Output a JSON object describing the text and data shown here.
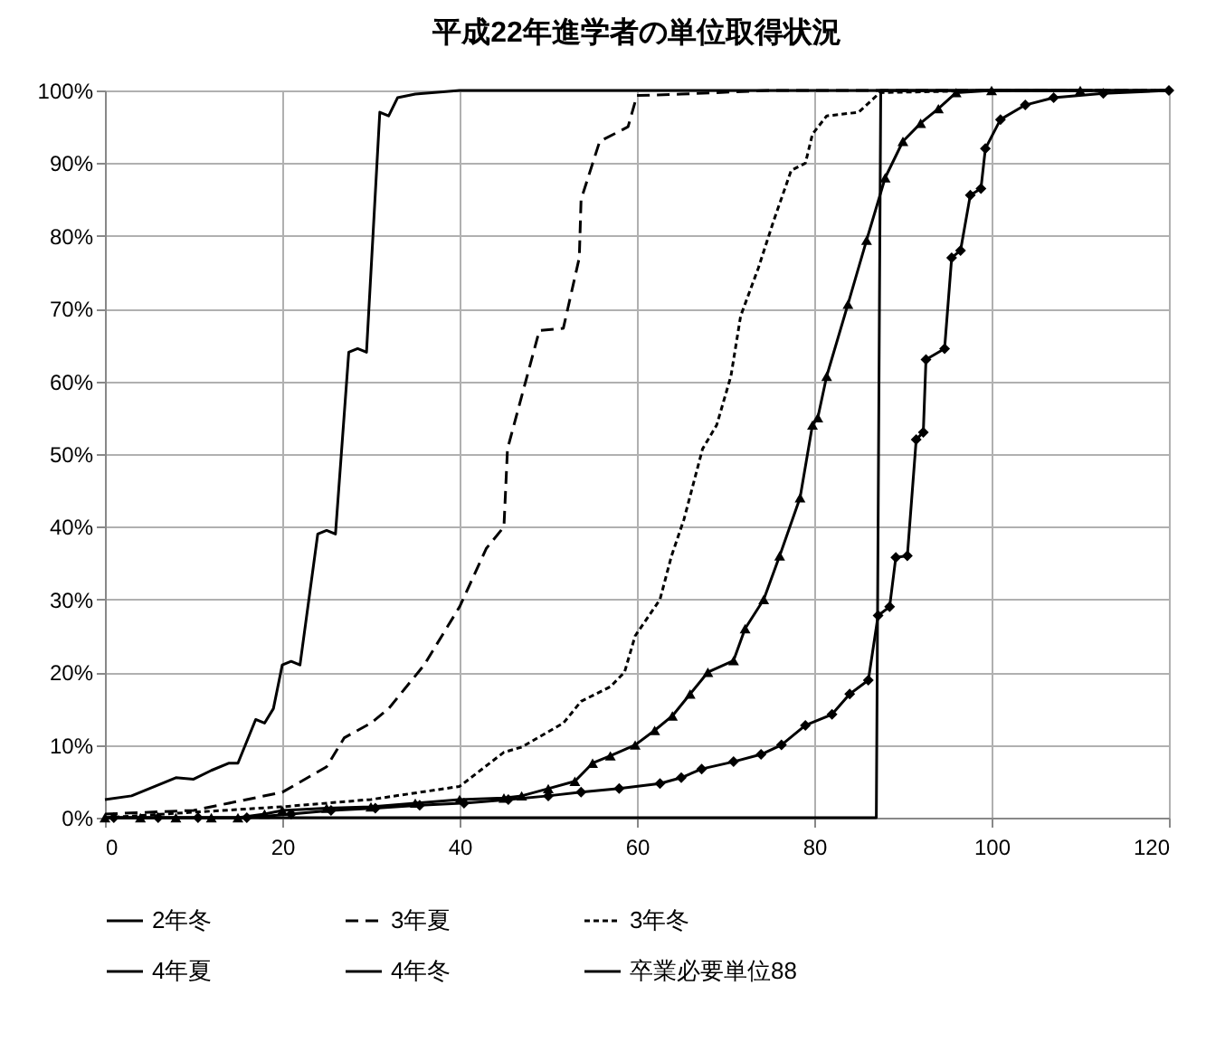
{
  "chart_data": {
    "type": "line",
    "title": "平成22年進学者の単位取得状況",
    "xlim": [
      0,
      120
    ],
    "xticks": [
      0,
      20,
      40,
      60,
      80,
      100,
      120
    ],
    "ylim": [
      0,
      100
    ],
    "yticks": [
      {
        "value": 0,
        "label": "0%"
      },
      {
        "value": 10,
        "label": "10%"
      },
      {
        "value": 20,
        "label": "20%"
      },
      {
        "value": 30,
        "label": "30%"
      },
      {
        "value": 40,
        "label": "40%"
      },
      {
        "value": 50,
        "label": "50%"
      },
      {
        "value": 60,
        "label": "60%"
      },
      {
        "value": 70,
        "label": "70%"
      },
      {
        "value": 80,
        "label": "80%"
      },
      {
        "value": 90,
        "label": "90%"
      },
      {
        "value": 100,
        "label": "100%"
      }
    ],
    "grid": true,
    "legend": "bottom",
    "series": [
      {
        "name": "2年冬",
        "color": "#000000",
        "line_style": "solid",
        "marker": "none",
        "x": [
          0,
          3,
          5,
          8,
          10,
          12,
          14,
          15,
          17,
          18,
          19,
          20,
          21,
          22,
          24,
          25,
          26,
          27.5,
          28.5,
          29.5,
          31,
          32,
          33,
          35,
          40,
          120
        ],
        "values": [
          2.5,
          3,
          4,
          5.5,
          5.3,
          6.5,
          7.5,
          7.5,
          13.5,
          13,
          15,
          21,
          21.5,
          21,
          39,
          39.5,
          39,
          64,
          64.5,
          64,
          97,
          96.5,
          99,
          99.5,
          100,
          100
        ]
      },
      {
        "name": "3年夏",
        "color": "#000000",
        "line_style": "dashed",
        "marker": "none",
        "x": [
          0,
          10,
          20,
          25,
          27,
          30,
          32,
          36,
          40,
          43,
          45,
          45.4,
          49,
          51.7,
          53.5,
          53.7,
          55.8,
          59,
          60,
          65,
          75,
          120
        ],
        "values": [
          0.5,
          1,
          3.5,
          7,
          11,
          13,
          15,
          21,
          29,
          37,
          40,
          50.7,
          67,
          67.3,
          77,
          85,
          93,
          95,
          99.3,
          99.5,
          100,
          100
        ]
      },
      {
        "name": "3年冬",
        "color": "#000000",
        "line_style": "dotted",
        "marker": "none",
        "x": [
          0,
          20,
          30,
          40,
          45,
          47,
          51.7,
          53.7,
          57,
          58.6,
          59.8,
          62.6,
          63.9,
          65.3,
          67.4,
          69,
          70.6,
          71.7,
          73.7,
          75.4,
          77.4,
          79,
          79.8,
          81.4,
          85,
          87.4,
          100,
          120
        ],
        "values": [
          0,
          1.5,
          2.5,
          4.3,
          9,
          9.7,
          13,
          16,
          18,
          20,
          25,
          30,
          36,
          41,
          50.7,
          54,
          60.7,
          69,
          75.6,
          82,
          89,
          90,
          94,
          96.5,
          97,
          99.7,
          100,
          100
        ]
      },
      {
        "name": "4年夏",
        "color": "#000000",
        "line_style": "solid",
        "marker": "triangle",
        "x": [
          0,
          4,
          8,
          12,
          15,
          18,
          20,
          25,
          30,
          35,
          40,
          45,
          47,
          50,
          53,
          55,
          57,
          59.8,
          62,
          64,
          66,
          68,
          70.9,
          72.2,
          74.3,
          76.1,
          78.4,
          79.8,
          80.4,
          81.4,
          83.8,
          85.9,
          88,
          90,
          92,
          94,
          96,
          100,
          110
        ],
        "values": [
          0,
          0,
          0,
          0,
          0,
          0.5,
          1,
          1.3,
          1.5,
          2,
          2.5,
          2.7,
          3,
          4,
          5,
          7.5,
          8.5,
          10,
          12,
          14,
          17,
          20,
          21.6,
          26,
          30,
          36,
          44,
          54,
          55,
          60.7,
          70.6,
          79.4,
          88,
          93,
          95.5,
          97.5,
          99.7,
          100,
          100
        ]
      },
      {
        "name": "4年冬",
        "color": "#000000",
        "line_style": "solid",
        "marker": "diamond",
        "x": [
          1,
          6,
          10.5,
          16,
          21,
          25.5,
          30.5,
          35.5,
          40.5,
          45.5,
          50,
          53.7,
          58,
          62.6,
          65,
          67.3,
          70.9,
          74,
          76.3,
          79,
          82,
          84,
          86.1,
          87.2,
          88.5,
          89.2,
          90.5,
          91.5,
          92.3,
          92.6,
          94.7,
          95.5,
          96.5,
          97.6,
          98.8,
          99.3,
          101,
          103.8,
          107,
          112.6,
          120
        ],
        "values": [
          0,
          0,
          0,
          0,
          0.5,
          1,
          1.3,
          1.7,
          2,
          2.5,
          3,
          3.5,
          4,
          4.7,
          5.5,
          6.7,
          7.7,
          8.7,
          10,
          12.7,
          14.2,
          17,
          18.9,
          27.8,
          29,
          35.8,
          36,
          52,
          53,
          63,
          64.5,
          77,
          78,
          85.6,
          86.5,
          92,
          96,
          98,
          99,
          99.6,
          100
        ]
      },
      {
        "name": "卒業必要単位88",
        "color": "#000000",
        "line_style": "solid",
        "marker": "none",
        "x": [
          0,
          87,
          87.5,
          120
        ],
        "values": [
          0,
          0,
          100,
          100
        ]
      }
    ]
  }
}
